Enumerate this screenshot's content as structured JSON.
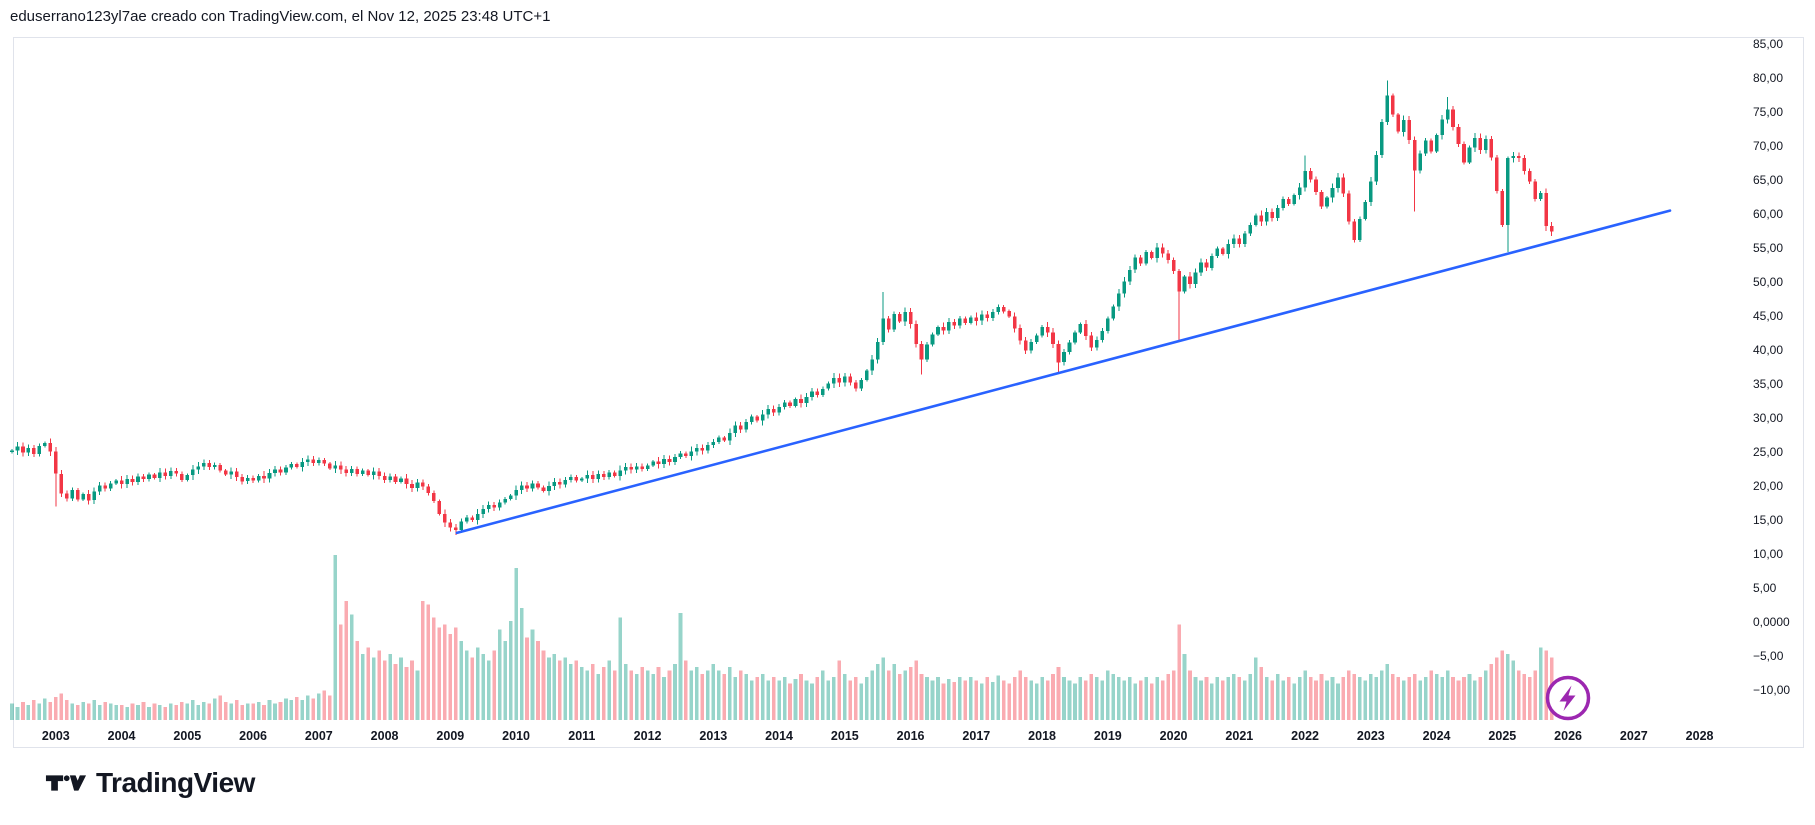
{
  "header": {
    "attribution": "eduserrano123yl7ae creado con TradingView.com, el Nov 12, 2025 23:48 UTC+1"
  },
  "footer": {
    "logo_text": "TradingView"
  },
  "boost_button": {
    "icon": "lightning-bolt",
    "ring_color": "#9C27B0"
  },
  "axes": {
    "price_labels": [
      {
        "text": "85,00",
        "value": 85
      },
      {
        "text": "80,00",
        "value": 80
      },
      {
        "text": "75,00",
        "value": 75
      },
      {
        "text": "70,00",
        "value": 70
      },
      {
        "text": "65,00",
        "value": 65
      },
      {
        "text": "60,00",
        "value": 60
      },
      {
        "text": "55,00",
        "value": 55
      },
      {
        "text": "50,00",
        "value": 50
      },
      {
        "text": "45,00",
        "value": 45
      },
      {
        "text": "40,00",
        "value": 40
      },
      {
        "text": "35,00",
        "value": 35
      },
      {
        "text": "30,00",
        "value": 30
      },
      {
        "text": "25,00",
        "value": 25
      },
      {
        "text": "20,00",
        "value": 20
      },
      {
        "text": "15,00",
        "value": 15
      },
      {
        "text": "10,00",
        "value": 10
      },
      {
        "text": "5,00",
        "value": 5
      },
      {
        "text": "0,0000",
        "value": 0
      },
      {
        "text": "−5,00",
        "value": -5
      },
      {
        "text": "−10,00",
        "value": -10
      }
    ],
    "year_labels": [
      {
        "text": "2003",
        "year": 2003
      },
      {
        "text": "2004",
        "year": 2004
      },
      {
        "text": "2005",
        "year": 2005
      },
      {
        "text": "2006",
        "year": 2006
      },
      {
        "text": "2007",
        "year": 2007
      },
      {
        "text": "2008",
        "year": 2008
      },
      {
        "text": "2009",
        "year": 2009
      },
      {
        "text": "2010",
        "year": 2010
      },
      {
        "text": "2011",
        "year": 2011
      },
      {
        "text": "2012",
        "year": 2012
      },
      {
        "text": "2013",
        "year": 2013
      },
      {
        "text": "2014",
        "year": 2014
      },
      {
        "text": "2015",
        "year": 2015
      },
      {
        "text": "2016",
        "year": 2016
      },
      {
        "text": "2017",
        "year": 2017
      },
      {
        "text": "2018",
        "year": 2018
      },
      {
        "text": "2019",
        "year": 2019
      },
      {
        "text": "2020",
        "year": 2020
      },
      {
        "text": "2021",
        "year": 2021
      },
      {
        "text": "2022",
        "year": 2022
      },
      {
        "text": "2023",
        "year": 2023
      },
      {
        "text": "2024",
        "year": 2024
      },
      {
        "text": "2025",
        "year": 2025
      },
      {
        "text": "2026",
        "year": 2026
      },
      {
        "text": "2027",
        "year": 2027
      },
      {
        "text": "2028",
        "year": 2028
      }
    ]
  },
  "chart_data": {
    "type": "candlestick",
    "interval": "1M",
    "start_month": "2002-05",
    "ylim": [
      -18,
      86
    ],
    "x_visible_years": [
      2002.3,
      2028.6
    ],
    "grid": false,
    "legend_position": "none",
    "first_open": 25.0,
    "closes": [
      25.2,
      25.8,
      24.9,
      25.6,
      24.7,
      25.9,
      26.3,
      25.1,
      21.8,
      18.9,
      18.2,
      19.4,
      18.0,
      18.8,
      17.9,
      19.2,
      20.1,
      19.6,
      20.4,
      20.8,
      20.3,
      21.0,
      20.6,
      21.4,
      21.0,
      21.7,
      21.2,
      22.0,
      21.5,
      22.2,
      21.8,
      20.9,
      21.6,
      22.4,
      22.9,
      23.4,
      22.8,
      23.1,
      22.3,
      21.7,
      22.1,
      21.3,
      20.7,
      21.2,
      20.8,
      21.5,
      21.1,
      21.9,
      22.4,
      22.0,
      22.7,
      23.2,
      22.8,
      23.5,
      23.9,
      23.4,
      23.8,
      23.3,
      22.6,
      23.0,
      22.4,
      21.9,
      22.5,
      21.8,
      22.3,
      21.6,
      22.1,
      21.5,
      20.9,
      21.4,
      20.6,
      21.1,
      20.3,
      19.7,
      20.5,
      19.9,
      19.0,
      17.8,
      15.9,
      14.6,
      13.9,
      13.5,
      14.8,
      15.4,
      15.0,
      15.9,
      16.6,
      17.2,
      16.8,
      17.6,
      18.1,
      18.6,
      19.4,
      20.1,
      19.6,
      20.4,
      19.8,
      19.3,
      20.0,
      20.6,
      20.2,
      20.9,
      21.3,
      20.8,
      21.1,
      21.6,
      21.0,
      21.8,
      21.3,
      22.0,
      21.5,
      22.3,
      22.8,
      22.4,
      22.9,
      22.5,
      23.0,
      23.6,
      23.2,
      24.0,
      23.5,
      24.3,
      24.8,
      24.4,
      25.1,
      25.6,
      25.2,
      26.0,
      26.5,
      27.1,
      26.7,
      27.8,
      28.9,
      28.3,
      29.4,
      30.2,
      29.6,
      30.5,
      31.3,
      30.8,
      31.6,
      32.3,
      31.8,
      32.8,
      32.2,
      33.1,
      33.9,
      33.4,
      34.3,
      35.1,
      35.9,
      35.2,
      36.1,
      35.2,
      34.3,
      35.6,
      37.0,
      38.6,
      41.2,
      44.6,
      43.0,
      45.3,
      44.2,
      45.6,
      43.8,
      40.9,
      38.6,
      40.8,
      42.3,
      43.4,
      42.9,
      44.1,
      43.6,
      44.6,
      44.0,
      44.8,
      44.3,
      45.2,
      44.7,
      45.6,
      46.3,
      45.7,
      44.9,
      43.2,
      41.4,
      39.9,
      41.2,
      42.1,
      43.4,
      42.6,
      40.9,
      38.2,
      39.7,
      41.1,
      42.6,
      43.8,
      42.1,
      40.4,
      41.5,
      42.8,
      44.6,
      46.4,
      48.3,
      50.1,
      51.8,
      53.6,
      52.7,
      54.4,
      53.5,
      55.1,
      54.2,
      53.2,
      51.6,
      48.6,
      50.8,
      49.7,
      51.4,
      52.9,
      52.1,
      53.8,
      54.9,
      54.1,
      55.6,
      56.4,
      55.6,
      57.1,
      58.4,
      59.8,
      58.9,
      60.3,
      59.4,
      60.9,
      62.2,
      61.5,
      62.8,
      63.9,
      66.3,
      65.1,
      63.2,
      61.1,
      62.4,
      63.8,
      65.4,
      63.0,
      58.9,
      56.2,
      59.3,
      61.8,
      64.8,
      68.7,
      73.5,
      77.4,
      74.6,
      72.1,
      73.8,
      70.9,
      66.4,
      68.9,
      70.8,
      69.2,
      71.6,
      73.9,
      75.4,
      72.8,
      70.3,
      67.6,
      69.8,
      71.2,
      69.4,
      71.0,
      68.3,
      63.4,
      58.4,
      68.2,
      68.5,
      68.2,
      66.3,
      64.8,
      62.2,
      63.1,
      58.2,
      57.4
    ],
    "volumes": [
      10,
      8,
      11,
      9,
      12,
      10,
      13,
      11,
      14,
      16,
      12,
      10,
      9,
      11,
      10,
      12,
      9,
      11,
      10,
      9,
      9,
      8,
      10,
      9,
      11,
      8,
      10,
      9,
      8,
      10,
      9,
      11,
      10,
      12,
      9,
      11,
      10,
      13,
      15,
      11,
      10,
      12,
      9,
      10,
      10,
      11,
      9,
      12,
      10,
      11,
      13,
      12,
      14,
      12,
      15,
      13,
      16,
      18,
      15,
      100,
      58,
      72,
      64,
      48,
      40,
      44,
      38,
      42,
      36,
      40,
      34,
      38,
      32,
      36,
      30,
      72,
      70,
      62,
      56,
      58,
      52,
      56,
      48,
      42,
      38,
      44,
      40,
      36,
      42,
      55,
      48,
      60,
      92,
      68,
      50,
      55,
      48,
      42,
      38,
      40,
      36,
      38,
      34,
      36,
      32,
      30,
      34,
      28,
      32,
      36,
      30,
      62,
      34,
      30,
      28,
      32,
      30,
      28,
      32,
      26,
      30,
      34,
      65,
      36,
      30,
      32,
      28,
      30,
      34,
      30,
      28,
      32,
      26,
      30,
      28,
      24,
      26,
      28,
      24,
      26,
      24,
      26,
      22,
      25,
      28,
      24,
      22,
      26,
      30,
      24,
      26,
      36,
      28,
      24,
      26,
      22,
      26,
      30,
      34,
      38,
      30,
      34,
      28,
      30,
      32,
      36,
      28,
      26,
      24,
      26,
      22,
      25,
      23,
      26,
      24,
      26,
      24,
      22,
      26,
      23,
      27,
      24,
      22,
      26,
      30,
      26,
      24,
      22,
      26,
      24,
      28,
      32,
      26,
      24,
      22,
      26,
      24,
      28,
      26,
      24,
      30,
      28,
      26,
      24,
      26,
      22,
      24,
      26,
      22,
      26,
      24,
      28,
      30,
      58,
      40,
      30,
      26,
      24,
      26,
      22,
      26,
      24,
      26,
      28,
      26,
      24,
      28,
      38,
      32,
      26,
      24,
      28,
      24,
      26,
      22,
      26,
      30,
      26,
      24,
      28,
      24,
      26,
      22,
      26,
      30,
      28,
      26,
      24,
      28,
      26,
      30,
      34,
      28,
      26,
      24,
      26,
      28,
      24,
      26,
      30,
      28,
      26,
      30,
      26,
      24,
      26,
      28,
      24,
      26,
      30,
      34,
      38,
      42,
      40,
      36,
      30,
      28,
      26,
      30,
      44,
      42,
      38
    ],
    "wick_default": 0.5,
    "wick_overrides": {
      "8": {
        "low": 17.0
      },
      "81": {
        "low": 12.8
      },
      "159": {
        "high": 48.5
      },
      "166": {
        "low": 36.4
      },
      "191": {
        "low": 36.6
      },
      "213": {
        "low": 41.4
      },
      "236": {
        "high": 68.6
      },
      "251": {
        "high": 79.6
      },
      "256": {
        "low": 60.4
      },
      "262": {
        "high": 77.2
      },
      "273": {
        "low": 54.4
      }
    },
    "trendline": {
      "t1": 2009.1,
      "p1": 13.1,
      "t2": 2027.55,
      "p2": 60.5,
      "color": "#2962FF"
    },
    "colors": {
      "up": "#089981",
      "down": "#F23645",
      "volume_up": "rgba(8,153,129,0.42)",
      "volume_down": "rgba(242,54,69,0.42)",
      "axis_text": "#131722",
      "border": "#E0E3EB",
      "boost_purple": "#9C27B0"
    }
  }
}
